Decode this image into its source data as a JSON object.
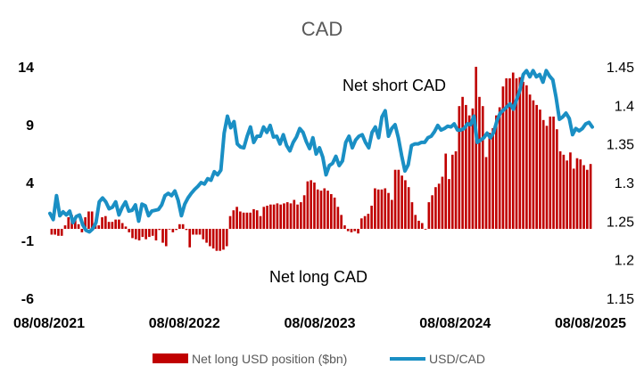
{
  "chart_data": {
    "type": "bar",
    "title": "CAD",
    "annotations": [
      "Net short CAD",
      "Net long CAD"
    ],
    "x_tick_labels": [
      "08/08/2021",
      "08/08/2022",
      "08/08/2023",
      "08/08/2024",
      "08/08/2025"
    ],
    "y_left": {
      "ticks": [
        14,
        9,
        4,
        -1,
        -6
      ],
      "ylim": [
        -6,
        14
      ]
    },
    "y_right": {
      "ticks": [
        1.45,
        1.4,
        1.35,
        1.3,
        1.25,
        1.2,
        1.15
      ],
      "ylim": [
        1.15,
        1.45
      ]
    },
    "legend_position": "bottom",
    "grid": false,
    "colors": {
      "bars": "#c00000",
      "line": "#1a8fc4",
      "text": "#000000",
      "title": "#595959"
    },
    "series": [
      {
        "name": "Net long USD position ($bn)",
        "type": "bar",
        "axis": "left",
        "values": [
          -0.5,
          -0.5,
          -0.6,
          -0.6,
          0.3,
          1.0,
          1.2,
          1.0,
          0.4,
          -0.3,
          1.0,
          1.5,
          1.5,
          0.6,
          0.3,
          1.0,
          1.1,
          0.6,
          0.6,
          0.8,
          0.8,
          0.5,
          0.2,
          -0.3,
          -0.8,
          -0.9,
          -1.0,
          -0.7,
          -0.9,
          -0.7,
          -0.6,
          -1.0,
          -0.1,
          -1.2,
          -1.5,
          0.0,
          -0.3,
          -0.1,
          0.4,
          0.4,
          -0.1,
          -1.6,
          -0.5,
          -0.5,
          -0.5,
          -0.9,
          -1.2,
          -1.5,
          -1.7,
          -1.9,
          -1.9,
          -1.8,
          -1.5,
          1.1,
          1.6,
          1.9,
          1.5,
          1.4,
          1.4,
          1.4,
          1.7,
          1.6,
          1.1,
          1.9,
          2.0,
          2.1,
          2.1,
          2.2,
          2.1,
          2.2,
          2.3,
          2.2,
          2.5,
          2.1,
          2.3,
          2.9,
          4.1,
          4.2,
          4.0,
          3.4,
          3.3,
          3.5,
          3.3,
          3.0,
          2.7,
          1.9,
          1.2,
          0.3,
          -0.2,
          -0.3,
          -0.2,
          -0.4,
          0.9,
          1.1,
          1.3,
          2.0,
          3.5,
          3.4,
          3.4,
          3.5,
          3.1,
          2.5,
          5.1,
          5.1,
          4.6,
          4.2,
          3.6,
          2.3,
          1.2,
          0.7,
          0.5,
          0.0,
          2.3,
          2.9,
          3.6,
          3.9,
          4.5,
          6.5,
          4.3,
          6.4,
          6.7,
          10.6,
          11.4,
          10.7,
          9.8,
          10.4,
          14.0,
          11.4,
          10.6,
          6.2,
          8.3,
          8.7,
          9.8,
          10.5,
          12.3,
          13.0,
          13.0,
          13.5,
          13.0,
          13.1,
          12.7,
          12.4,
          11.6,
          11.1,
          10.7,
          10.3,
          9.4,
          8.9,
          9.7,
          9.7,
          8.6,
          6.7,
          6.4,
          5.9,
          6.6,
          5.2,
          6.1,
          6.0,
          5.5,
          5.1,
          5.6
        ]
      },
      {
        "name": "USD/CAD",
        "type": "line",
        "axis": "right",
        "values": [
          1.26,
          1.252,
          1.283,
          1.257,
          1.262,
          1.258,
          1.263,
          1.248,
          1.256,
          1.258,
          1.245,
          1.238,
          1.236,
          1.24,
          1.248,
          1.275,
          1.28,
          1.275,
          1.266,
          1.268,
          1.275,
          1.258,
          1.268,
          1.275,
          1.263,
          1.264,
          1.271,
          1.25,
          1.272,
          1.27,
          1.257,
          1.263,
          1.264,
          1.265,
          1.271,
          1.283,
          1.286,
          1.283,
          1.289,
          1.277,
          1.257,
          1.272,
          1.28,
          1.286,
          1.291,
          1.295,
          1.3,
          1.298,
          1.305,
          1.303,
          1.314,
          1.31,
          1.316,
          1.364,
          1.386,
          1.371,
          1.379,
          1.35,
          1.346,
          1.345,
          1.36,
          1.372,
          1.352,
          1.36,
          1.36,
          1.372,
          1.365,
          1.374,
          1.359,
          1.36,
          1.35,
          1.362,
          1.348,
          1.341,
          1.352,
          1.359,
          1.37,
          1.365,
          1.353,
          1.344,
          1.358,
          1.337,
          1.345,
          1.333,
          1.31,
          1.322,
          1.325,
          1.334,
          1.322,
          1.328,
          1.352,
          1.36,
          1.345,
          1.355,
          1.36,
          1.362,
          1.352,
          1.345,
          1.365,
          1.372,
          1.358,
          1.385,
          1.393,
          1.36,
          1.37,
          1.375,
          1.358,
          1.335,
          1.315,
          1.323,
          1.348,
          1.35,
          1.35,
          1.352,
          1.352,
          1.358,
          1.36,
          1.366,
          1.374,
          1.368,
          1.37,
          1.373,
          1.372,
          1.376,
          1.368,
          1.368,
          1.37,
          1.376,
          1.375,
          1.386,
          1.352,
          1.355,
          1.358,
          1.364,
          1.358,
          1.365,
          1.38,
          1.39,
          1.394,
          1.398,
          1.402,
          1.395,
          1.408,
          1.42,
          1.44,
          1.445,
          1.437,
          1.445,
          1.437,
          1.44,
          1.43,
          1.445,
          1.438,
          1.433,
          1.41,
          1.382,
          1.385,
          1.39,
          1.383,
          1.362,
          1.37,
          1.367,
          1.37,
          1.376,
          1.378,
          1.372
        ]
      }
    ]
  }
}
